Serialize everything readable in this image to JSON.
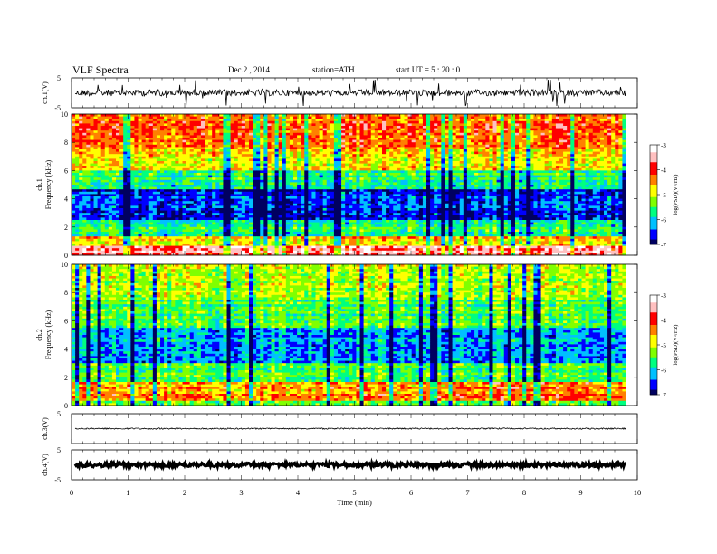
{
  "header": {
    "title": "VLF  Spectra",
    "date": "Dec.2  , 2014",
    "station": "station=ATH",
    "start": "start  UT  =   5  : 20 : 0"
  },
  "chart_data": [
    {
      "type": "line",
      "panel": "ch1-waveform",
      "ylabel": "ch.1(V)",
      "ylim": [
        -5,
        5
      ],
      "yticklabels": [
        "5",
        "-5"
      ],
      "description_series": "noisy waveform centered near 0 with spikes",
      "xlim": [
        0,
        9.8
      ]
    },
    {
      "type": "heatmap",
      "panel": "ch1-spectrogram",
      "ylabel": [
        "ch.1",
        "Frequency  (kHz)"
      ],
      "ylim": [
        0,
        10
      ],
      "yticks": [
        0,
        2,
        4,
        6,
        8,
        10
      ],
      "xlim": [
        0,
        9.8
      ],
      "colorbar": {
        "label": "log(PSD)(V²/Hz)",
        "ticks": [
          "-3",
          "-4",
          "-5",
          "-6",
          "-7"
        ],
        "range": [
          -7,
          -3
        ]
      }
    },
    {
      "type": "heatmap",
      "panel": "ch2-spectrogram",
      "ylabel": [
        "ch.2",
        "Frequency  (kHz)"
      ],
      "ylim": [
        0,
        10
      ],
      "yticks": [
        0,
        2,
        4,
        6,
        8,
        10
      ],
      "xlim": [
        0,
        9.8
      ],
      "colorbar": {
        "label": "log(PSD)(V²/Hz)",
        "ticks": [
          "-3",
          "-4",
          "-5",
          "-6",
          "-7"
        ],
        "range": [
          -7,
          -3
        ]
      }
    },
    {
      "type": "line",
      "panel": "ch3-waveform",
      "ylabel": "ch.3(V)",
      "ylim": [
        -5,
        5
      ],
      "yticklabels": [
        "5"
      ],
      "xlim": [
        0,
        9.8
      ]
    },
    {
      "type": "line",
      "panel": "ch4-waveform",
      "ylabel": "ch.4(V)",
      "ylim": [
        -5,
        5
      ],
      "yticklabels": [
        "5",
        "-5"
      ],
      "xlim": [
        0,
        9.8
      ]
    }
  ],
  "xaxis": {
    "label": "Time  (min)",
    "range": [
      0,
      10
    ],
    "ticks": [
      "0",
      "1",
      "2",
      "3",
      "4",
      "5",
      "6",
      "7",
      "8",
      "9",
      "10"
    ]
  },
  "colors": {
    "colormap": [
      "#000060",
      "#0000ff",
      "#00c0ff",
      "#00ff80",
      "#80ff00",
      "#ffff00",
      "#ff8000",
      "#ff0000",
      "#ffc0c0",
      "#ffffff"
    ],
    "line": "#000000"
  }
}
